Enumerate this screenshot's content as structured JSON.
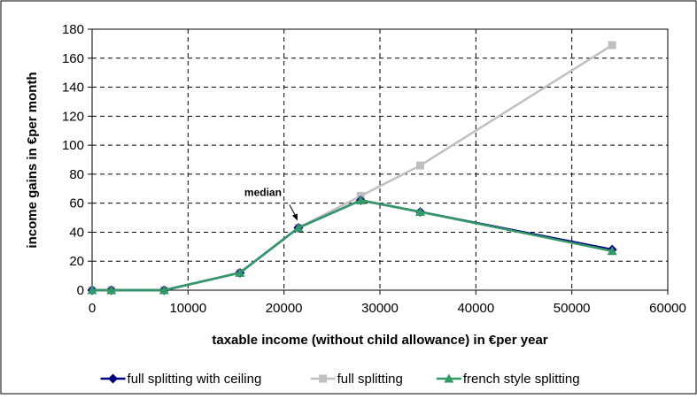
{
  "chart_data": {
    "type": "line",
    "xlabel": "taxable income (without child allowance) in €per year",
    "ylabel": "income gains in €per month",
    "xlim": [
      0,
      60000
    ],
    "ylim": [
      0,
      180
    ],
    "x_ticks": [
      0,
      10000,
      20000,
      30000,
      40000,
      50000,
      60000
    ],
    "y_ticks": [
      0,
      20,
      40,
      60,
      80,
      100,
      120,
      140,
      160,
      180
    ],
    "grid": "dashed horizontal and vertical",
    "legend_position": "bottom",
    "x": [
      0,
      2000,
      7500,
      15400,
      21500,
      28000,
      34200,
      54200
    ],
    "series": [
      {
        "name": "full splitting",
        "values": [
          0,
          0,
          0,
          12,
          43,
          65,
          86,
          169
        ],
        "color": "#c0c0c0",
        "marker": "square"
      },
      {
        "name": "full splitting with ceiling",
        "values": [
          0,
          0,
          0,
          12,
          43,
          62,
          54,
          28
        ],
        "color": "#000080",
        "marker": "diamond"
      },
      {
        "name": "french style splitting",
        "values": [
          0,
          0,
          0,
          12,
          43,
          62,
          54,
          27
        ],
        "color": "#339966",
        "marker": "triangle"
      }
    ],
    "annotations": [
      {
        "text": "median",
        "x": 21500,
        "y": 43
      }
    ]
  }
}
